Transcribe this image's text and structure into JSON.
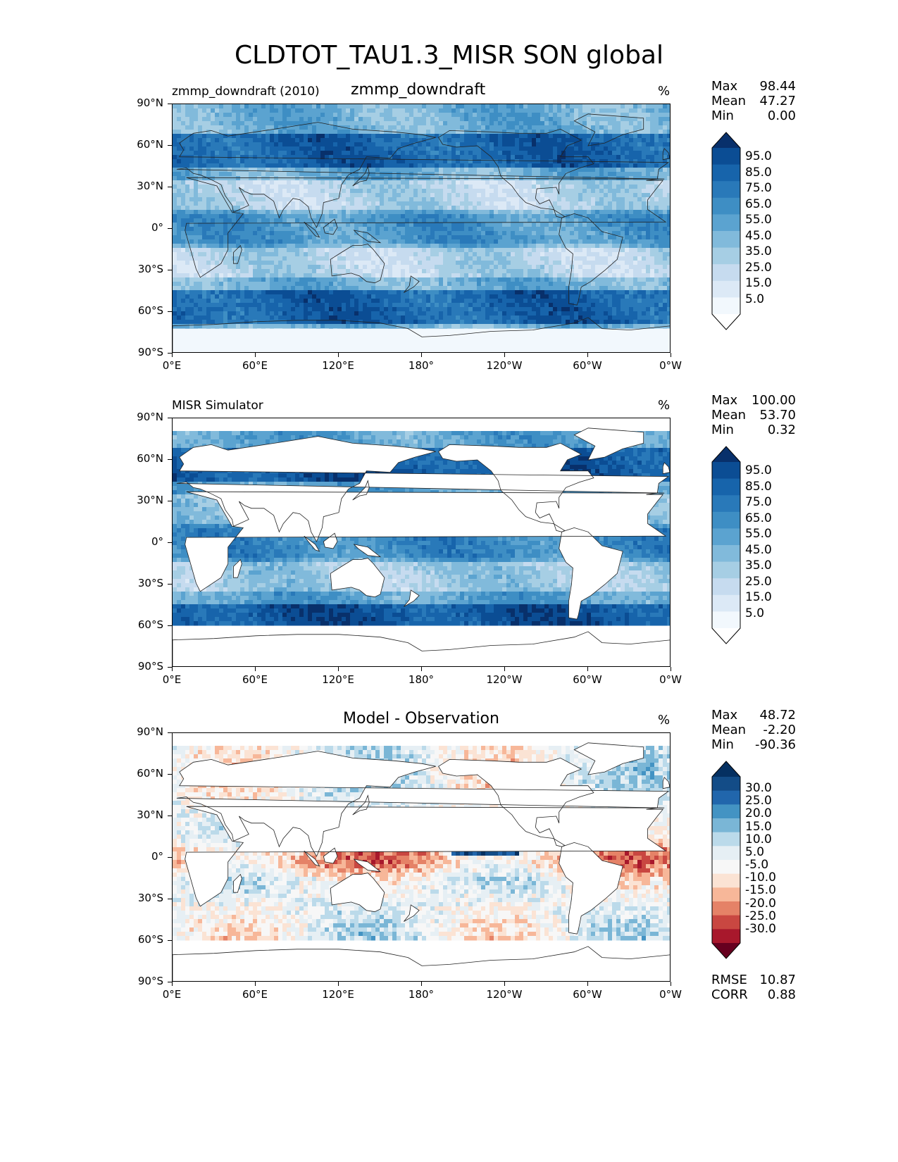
{
  "figure": {
    "title": "CLDTOT_TAU1.3_MISR SON global",
    "lat_ticks": [
      "90°N",
      "60°N",
      "30°N",
      "0°",
      "30°S",
      "60°S",
      "90°S"
    ],
    "lon_ticks": [
      "0°E",
      "60°E",
      "120°E",
      "180°",
      "120°W",
      "60°W",
      "0°W"
    ]
  },
  "panels": [
    {
      "left_label": "zmmp_downdraft (2010)",
      "center_label": "zmmp_downdraft",
      "units": "%",
      "stats": [
        {
          "key": "Max",
          "value": "98.44"
        },
        {
          "key": "Mean",
          "value": "47.27"
        },
        {
          "key": "Min",
          "value": "0.00"
        }
      ],
      "colorbar": {
        "labels": [
          "95.0",
          "85.0",
          "75.0",
          "65.0",
          "55.0",
          "45.0",
          "35.0",
          "25.0",
          "15.0",
          "5.0"
        ],
        "colors": [
          "#08306b",
          "#0b4d94",
          "#1764ab",
          "#2979b9",
          "#3e8ec4",
          "#5ba3d0",
          "#81badb",
          "#a6cee4",
          "#c6dbef",
          "#dce9f6",
          "#f2f8fd",
          "#ffffff"
        ]
      }
    },
    {
      "left_label": "MISR Simulator",
      "center_label": "",
      "units": "%",
      "stats": [
        {
          "key": "Max",
          "value": "100.00"
        },
        {
          "key": "Mean",
          "value": "53.70"
        },
        {
          "key": "Min",
          "value": "0.32"
        }
      ],
      "colorbar": {
        "labels": [
          "95.0",
          "85.0",
          "75.0",
          "65.0",
          "55.0",
          "45.0",
          "35.0",
          "25.0",
          "15.0",
          "5.0"
        ],
        "colors": [
          "#08306b",
          "#0b4d94",
          "#1764ab",
          "#2979b9",
          "#3e8ec4",
          "#5ba3d0",
          "#81badb",
          "#a6cee4",
          "#c6dbef",
          "#dce9f6",
          "#f2f8fd",
          "#ffffff"
        ]
      }
    },
    {
      "left_label": "",
      "center_label": "Model - Observation",
      "units": "%",
      "stats": [
        {
          "key": "Max",
          "value": "48.72"
        },
        {
          "key": "Mean",
          "value": "-2.20"
        },
        {
          "key": "Min",
          "value": "-90.36"
        }
      ],
      "extra_stats": [
        {
          "key": "RMSE",
          "value": "10.87"
        },
        {
          "key": "CORR",
          "value": "0.88"
        }
      ],
      "colorbar": {
        "labels": [
          "30.0",
          "25.0",
          "20.0",
          "15.0",
          "10.0",
          "5.0",
          "-5.0",
          "-10.0",
          "-15.0",
          "-20.0",
          "-25.0",
          "-30.0"
        ],
        "colors": [
          "#053061",
          "#134c87",
          "#2166ac",
          "#4393c3",
          "#7ab6d6",
          "#bbdaea",
          "#e6eff4",
          "#f7f7f7",
          "#fbe3d4",
          "#f7b799",
          "#e58267",
          "#c94741",
          "#a8182c",
          "#67001f"
        ]
      }
    }
  ]
}
